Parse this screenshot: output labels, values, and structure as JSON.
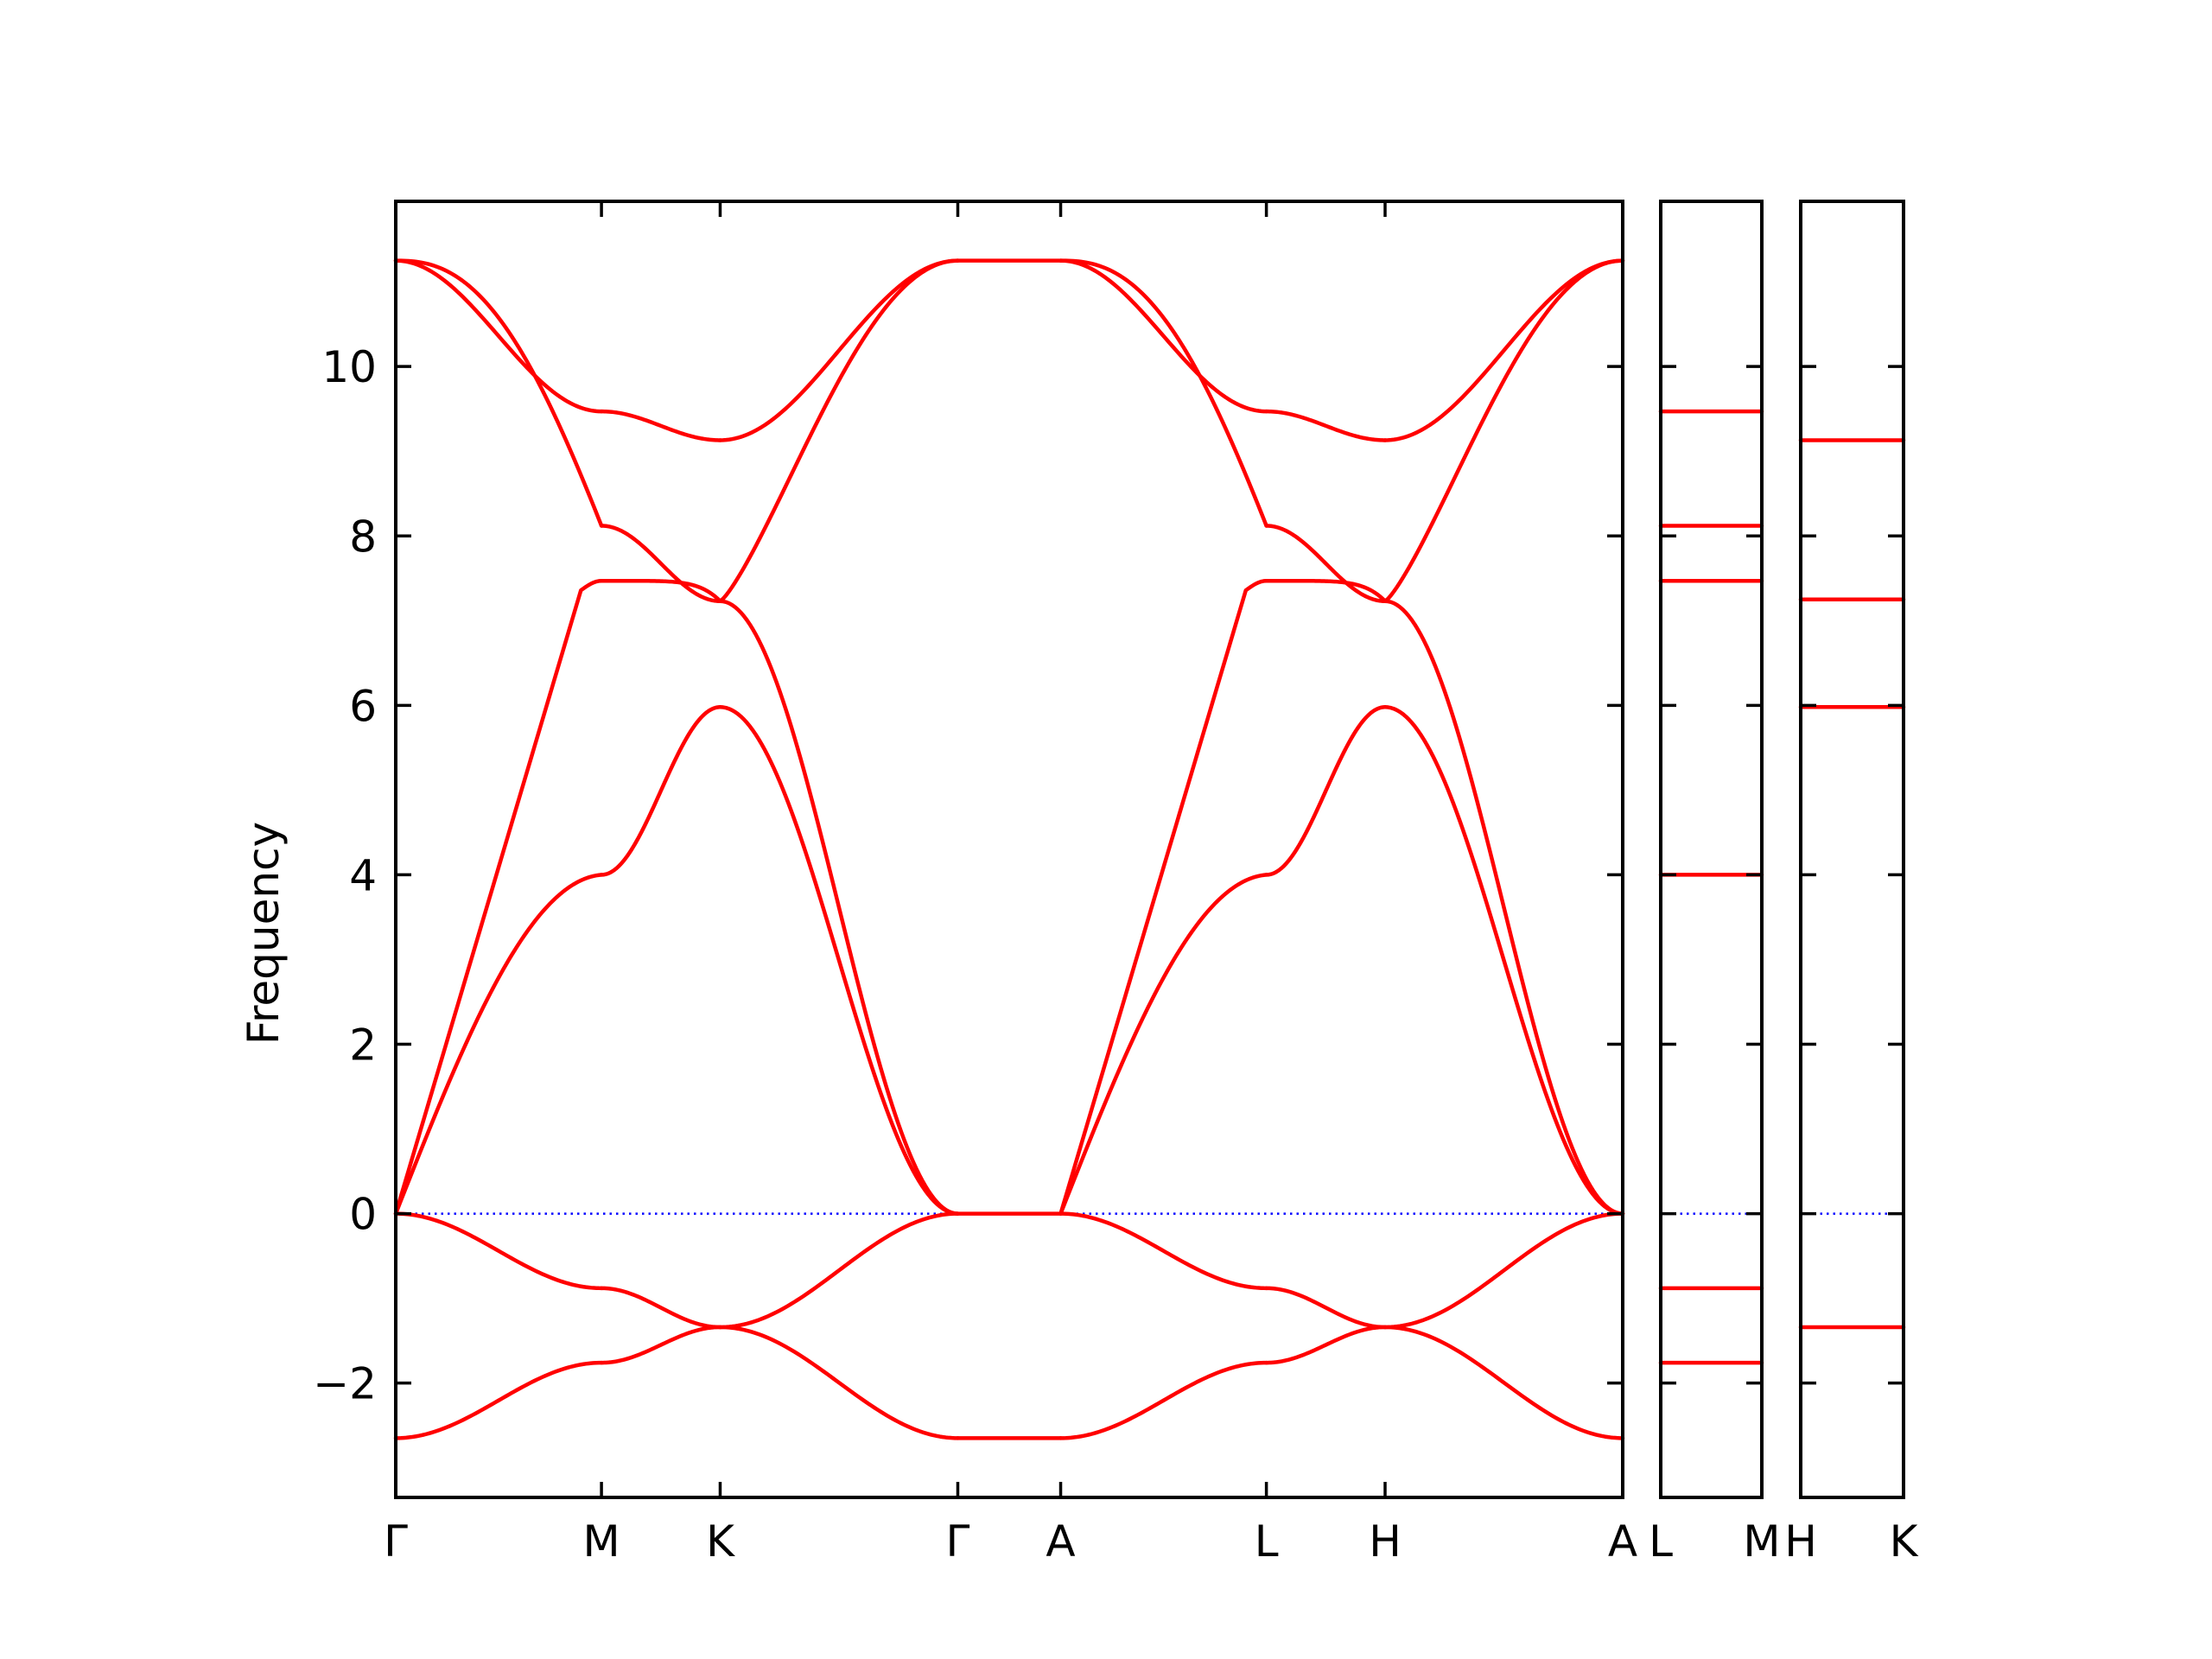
{
  "chart_data": {
    "type": "line",
    "title": "",
    "ylabel": "Frequency",
    "xlabel": "",
    "ylim": [
      -3.35,
      11.95
    ],
    "y_ticks": [
      "−2",
      "0",
      "2",
      "4",
      "6",
      "8",
      "10"
    ],
    "grid": false,
    "colors": {
      "bands": "#ff0000",
      "zero_line": "#0000ff",
      "frame": "#000000"
    },
    "panels": [
      {
        "id": "main",
        "x_ticks": [
          {
            "x": 0.0,
            "label": "Γ"
          },
          {
            "x": 1.0,
            "label": "M"
          },
          {
            "x": 1.577,
            "label": "K"
          },
          {
            "x": 2.732,
            "label": "Γ"
          },
          {
            "x": 3.232,
            "label": "A"
          },
          {
            "x": 4.232,
            "label": "L"
          },
          {
            "x": 4.809,
            "label": "H"
          },
          {
            "x": 5.964,
            "label": "A"
          }
        ],
        "segments": [
          {
            "from": "Γ",
            "to": "M",
            "x0": 0.0,
            "x1": 1.0,
            "bands": [
              {
                "kind": "smooth",
                "start": 11.25,
                "end": 9.47,
                "mid": 10.05
              },
              {
                "kind": "knee",
                "start": 11.25,
                "end": 8.12,
                "mid": 10.0,
                "sharp": 8.15
              },
              {
                "kind": "linear",
                "start": 0.0,
                "end": 7.47,
                "mid": 3.95,
                "sharp": 7.43
              },
              {
                "kind": "linear-knee",
                "start": 0.0,
                "end": 4.0,
                "mid": 2.22,
                "sharp": 3.98
              },
              {
                "kind": "smooth",
                "start": 0.0,
                "end": -0.88,
                "mid": -0.44
              },
              {
                "kind": "smooth",
                "start": -2.65,
                "end": -1.76,
                "mid": -2.22
              }
            ]
          },
          {
            "from": "M",
            "to": "K",
            "x0": 1.0,
            "x1": 1.577,
            "bands": [
              {
                "kind": "smooth",
                "start": 9.47,
                "end": 9.13,
                "mid": 9.3
              },
              {
                "kind": "smooth",
                "start": 8.12,
                "end": 7.23,
                "mid": 7.7
              },
              {
                "kind": "flat",
                "start": 7.47,
                "end": 7.23,
                "mid": 7.43
              },
              {
                "kind": "smooth",
                "start": 4.0,
                "end": 5.98,
                "mid": 4.98
              },
              {
                "kind": "smooth",
                "start": -0.88,
                "end": -1.34,
                "mid": -1.08
              },
              {
                "kind": "smooth",
                "start": -1.76,
                "end": -1.34,
                "mid": -1.58
              }
            ]
          },
          {
            "from": "K",
            "to": "Γ",
            "x0": 1.577,
            "x1": 2.732,
            "bands": [
              {
                "kind": "smooth",
                "start": 9.13,
                "end": 11.25,
                "mid": 10.4
              },
              {
                "kind": "knee-start",
                "start": 7.23,
                "end": 11.25,
                "mid": 9.82,
                "sharp": 7.28
              },
              {
                "kind": "smooth",
                "start": 7.23,
                "end": 0.0,
                "mid": 4.0
              },
              {
                "kind": "smooth",
                "start": 5.98,
                "end": 0.0,
                "mid": 2.67
              },
              {
                "kind": "smooth",
                "start": -1.34,
                "end": 0.0,
                "mid": -0.5
              },
              {
                "kind": "smooth",
                "start": -1.34,
                "end": -2.65,
                "mid": -2.22
              }
            ]
          },
          {
            "from": "Γ",
            "to": "A",
            "x0": 2.732,
            "x1": 3.232,
            "bands": [
              {
                "kind": "flat",
                "start": 11.25,
                "end": 11.25,
                "mid": 11.25
              },
              {
                "kind": "flat",
                "start": 0.0,
                "end": 0.0,
                "mid": 0.0
              },
              {
                "kind": "flat",
                "start": -2.65,
                "end": -2.65,
                "mid": -2.65
              }
            ]
          },
          {
            "from": "A",
            "to": "L",
            "x0": 3.232,
            "x1": 4.232,
            "bands": [
              {
                "kind": "smooth",
                "start": 11.25,
                "end": 9.47,
                "mid": 10.05
              },
              {
                "kind": "knee",
                "start": 11.25,
                "end": 8.12,
                "mid": 10.0,
                "sharp": 8.15
              },
              {
                "kind": "linear",
                "start": 0.0,
                "end": 7.47,
                "mid": 3.95,
                "sharp": 7.43
              },
              {
                "kind": "linear-knee",
                "start": 0.0,
                "end": 4.0,
                "mid": 2.22,
                "sharp": 3.98
              },
              {
                "kind": "smooth",
                "start": 0.0,
                "end": -0.88,
                "mid": -0.44
              },
              {
                "kind": "smooth",
                "start": -2.65,
                "end": -1.76,
                "mid": -2.22
              }
            ]
          },
          {
            "from": "L",
            "to": "H",
            "x0": 4.232,
            "x1": 4.809,
            "bands": [
              {
                "kind": "smooth",
                "start": 9.47,
                "end": 9.13,
                "mid": 9.3
              },
              {
                "kind": "smooth",
                "start": 8.12,
                "end": 7.23,
                "mid": 7.7
              },
              {
                "kind": "flat",
                "start": 7.47,
                "end": 7.23,
                "mid": 7.43
              },
              {
                "kind": "smooth",
                "start": 4.0,
                "end": 5.98,
                "mid": 4.98
              },
              {
                "kind": "smooth",
                "start": -0.88,
                "end": -1.34,
                "mid": -1.08
              },
              {
                "kind": "smooth",
                "start": -1.76,
                "end": -1.34,
                "mid": -1.58
              }
            ]
          },
          {
            "from": "H",
            "to": "A",
            "x0": 4.809,
            "x1": 5.964,
            "bands": [
              {
                "kind": "smooth",
                "start": 9.13,
                "end": 11.25,
                "mid": 10.4
              },
              {
                "kind": "knee-start",
                "start": 7.23,
                "end": 11.25,
                "mid": 9.82,
                "sharp": 7.28
              },
              {
                "kind": "smooth",
                "start": 7.23,
                "end": 0.0,
                "mid": 4.0
              },
              {
                "kind": "smooth",
                "start": 5.98,
                "end": 0.0,
                "mid": 2.67
              },
              {
                "kind": "smooth",
                "start": -1.34,
                "end": 0.0,
                "mid": -0.5
              },
              {
                "kind": "smooth",
                "start": -1.34,
                "end": -2.65,
                "mid": -2.22
              }
            ]
          }
        ]
      },
      {
        "id": "L-M",
        "x_ticks": [
          {
            "x": 0.0,
            "label": "L"
          },
          {
            "x": 1.0,
            "label": "M"
          }
        ],
        "flat_bands": [
          9.47,
          8.12,
          7.47,
          4.0,
          -0.88,
          -1.76
        ]
      },
      {
        "id": "H-K",
        "x_ticks": [
          {
            "x": 0.0,
            "label": "H"
          },
          {
            "x": 1.0,
            "label": "K"
          }
        ],
        "flat_bands": [
          9.13,
          7.25,
          5.98,
          -1.34
        ]
      }
    ]
  }
}
